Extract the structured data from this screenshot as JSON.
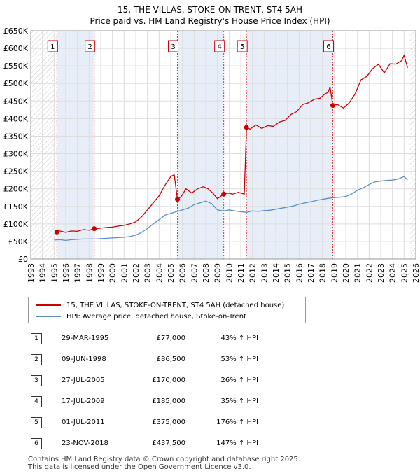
{
  "title": {
    "line1": "15, THE VILLAS, STOKE-ON-TRENT, ST4 5AH",
    "line2": "Price paid vs. HM Land Registry's House Price Index (HPI)"
  },
  "chart_data": {
    "type": "line",
    "xlim": [
      1993,
      2026
    ],
    "ylim": [
      0,
      650000
    ],
    "x_ticks": [
      1993,
      1994,
      1995,
      1996,
      1997,
      1998,
      1999,
      2000,
      2001,
      2002,
      2003,
      2004,
      2005,
      2006,
      2007,
      2008,
      2009,
      2010,
      2011,
      2012,
      2013,
      2014,
      2015,
      2016,
      2017,
      2018,
      2019,
      2020,
      2021,
      2022,
      2023,
      2024,
      2025,
      2026
    ],
    "y_ticks": [
      {
        "value": 0,
        "label": "£0"
      },
      {
        "value": 50000,
        "label": "£50K"
      },
      {
        "value": 100000,
        "label": "£100K"
      },
      {
        "value": 150000,
        "label": "£150K"
      },
      {
        "value": 200000,
        "label": "£200K"
      },
      {
        "value": 250000,
        "label": "£250K"
      },
      {
        "value": 300000,
        "label": "£300K"
      },
      {
        "value": 350000,
        "label": "£350K"
      },
      {
        "value": 400000,
        "label": "£400K"
      },
      {
        "value": 450000,
        "label": "£450K"
      },
      {
        "value": 500000,
        "label": "£500K"
      },
      {
        "value": 550000,
        "label": "£550K"
      },
      {
        "value": 600000,
        "label": "£600K"
      },
      {
        "value": 650000,
        "label": "£650K"
      }
    ],
    "hatch_before": 1995.0,
    "hatch_after": 2025.5,
    "series": [
      {
        "name": "15, THE VILLAS, STOKE-ON-TRENT, ST4 5AH (detached house)",
        "color": "#cc0000",
        "x": [
          1995.24,
          1995.5,
          1996.0,
          1996.5,
          1997.0,
          1997.5,
          1998.0,
          1998.44,
          1999.0,
          1999.5,
          2000.0,
          2000.5,
          2001.0,
          2001.5,
          2002.0,
          2002.5,
          2003.0,
          2003.5,
          2004.0,
          2004.5,
          2005.0,
          2005.3,
          2005.57,
          2005.9,
          2006.3,
          2006.8,
          2007.3,
          2007.8,
          2008.2,
          2008.6,
          2009.0,
          2009.54,
          2009.9,
          2010.3,
          2010.8,
          2011.3,
          2011.49,
          2011.8,
          2012.3,
          2012.8,
          2013.3,
          2013.8,
          2014.3,
          2014.8,
          2015.3,
          2015.8,
          2016.3,
          2016.8,
          2017.3,
          2017.8,
          2018.2,
          2018.5,
          2018.65,
          2018.89,
          2019.3,
          2019.8,
          2020.3,
          2020.8,
          2021.3,
          2021.8,
          2022.3,
          2022.8,
          2023.3,
          2023.8,
          2024.3,
          2024.8,
          2025.0,
          2025.3
        ],
        "y": [
          77000,
          80000,
          76000,
          80000,
          79000,
          84000,
          82000,
          86500,
          88000,
          90000,
          91000,
          94000,
          96000,
          100000,
          106000,
          120000,
          140000,
          160000,
          180000,
          210000,
          235000,
          240000,
          170000,
          178000,
          200000,
          188000,
          200000,
          206000,
          200000,
          188000,
          172000,
          185000,
          188000,
          185000,
          190000,
          185000,
          375000,
          370000,
          382000,
          372000,
          380000,
          378000,
          390000,
          395000,
          412000,
          420000,
          440000,
          445000,
          455000,
          458000,
          470000,
          475000,
          490000,
          437500,
          440000,
          430000,
          445000,
          470000,
          510000,
          520000,
          542000,
          555000,
          530000,
          556000,
          555000,
          565000,
          580000,
          545000
        ]
      },
      {
        "name": "HPI: Average price, detached house, Stoke-on-Trent",
        "color": "#5b8fc9",
        "x": [
          1995.0,
          1995.5,
          1996.0,
          1996.5,
          1997.0,
          1997.5,
          1998.0,
          1998.5,
          1999.0,
          1999.5,
          2000.0,
          2000.5,
          2001.0,
          2001.5,
          2002.0,
          2002.5,
          2003.0,
          2003.5,
          2004.0,
          2004.5,
          2005.0,
          2005.5,
          2006.0,
          2006.5,
          2007.0,
          2007.5,
          2008.0,
          2008.5,
          2009.0,
          2009.5,
          2010.0,
          2010.5,
          2011.0,
          2011.5,
          2012.0,
          2012.5,
          2013.0,
          2013.5,
          2014.0,
          2014.5,
          2015.0,
          2015.5,
          2016.0,
          2016.5,
          2017.0,
          2017.5,
          2018.0,
          2018.5,
          2019.0,
          2019.5,
          2020.0,
          2020.5,
          2021.0,
          2021.5,
          2022.0,
          2022.5,
          2023.0,
          2023.5,
          2024.0,
          2024.5,
          2025.0,
          2025.3
        ],
        "y": [
          54000,
          55000,
          53000,
          55000,
          56000,
          57000,
          57000,
          57000,
          58000,
          59000,
          60000,
          61000,
          62000,
          64000,
          68000,
          76000,
          87000,
          100000,
          112000,
          125000,
          130000,
          135000,
          140000,
          145000,
          155000,
          160000,
          165000,
          158000,
          140000,
          137000,
          140000,
          137000,
          135000,
          133000,
          137000,
          136000,
          138000,
          139000,
          142000,
          145000,
          148000,
          151000,
          156000,
          160000,
          163000,
          167000,
          170000,
          173000,
          175000,
          176000,
          178000,
          185000,
          196000,
          203000,
          212000,
          220000,
          222000,
          224000,
          225000,
          228000,
          235000,
          225000
        ]
      }
    ],
    "sales": [
      {
        "n": "1",
        "date": "29-MAR-1995",
        "x": 1995.24,
        "price": 77000,
        "price_label": "£77,000",
        "hpi": "43% ↑ HPI"
      },
      {
        "n": "2",
        "date": "09-JUN-1998",
        "x": 1998.44,
        "price": 86500,
        "price_label": "£86,500",
        "hpi": "53% ↑ HPI"
      },
      {
        "n": "3",
        "date": "27-JUL-2005",
        "x": 2005.57,
        "price": 170000,
        "price_label": "£170,000",
        "hpi": "26% ↑ HPI"
      },
      {
        "n": "4",
        "date": "17-JUL-2009",
        "x": 2009.54,
        "price": 185000,
        "price_label": "£185,000",
        "hpi": "35% ↑ HPI"
      },
      {
        "n": "5",
        "date": "01-JUL-2011",
        "x": 2011.49,
        "price": 375000,
        "price_label": "£375,000",
        "hpi": "176% ↑ HPI"
      },
      {
        "n": "6",
        "date": "23-NOV-2018",
        "x": 2018.89,
        "price": 437500,
        "price_label": "£437,500",
        "hpi": "147% ↑ HPI"
      }
    ]
  },
  "legend": {
    "property": "15, THE VILLAS, STOKE-ON-TRENT, ST4 5AH (detached house)",
    "hpi": "HPI: Average price, detached house, Stoke-on-Trent"
  },
  "colors": {
    "property": "#cc0000",
    "hpi": "#5b8fc9",
    "shade": "#e8eef8",
    "grid": "#dddddd"
  },
  "footer": {
    "line1": "Contains HM Land Registry data © Crown copyright and database right 2025.",
    "line2": "This data is licensed under the Open Government Licence v3.0."
  }
}
